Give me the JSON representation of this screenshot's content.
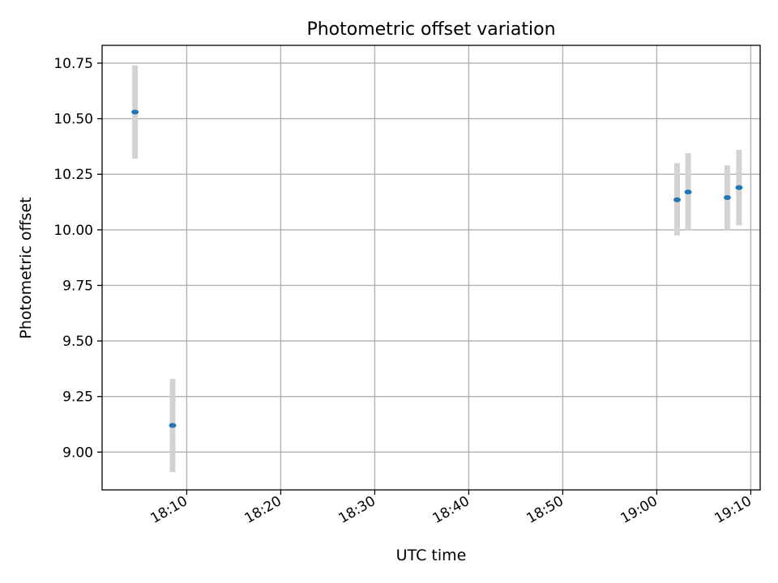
{
  "chart_data": {
    "type": "scatter",
    "title": "Photometric offset variation",
    "xlabel": "UTC time",
    "ylabel": "Photometric offset",
    "x_axis": "time",
    "xlim": [
      "18:01:00",
      "19:11:00"
    ],
    "ylim": [
      8.83,
      10.83
    ],
    "grid": true,
    "legend": "none",
    "x_ticks": [
      "18:10",
      "18:20",
      "18:30",
      "18:40",
      "18:50",
      "19:00",
      "19:10"
    ],
    "y_ticks": [
      "9.00",
      "9.25",
      "9.50",
      "9.75",
      "10.00",
      "10.25",
      "10.50",
      "10.75"
    ],
    "points": [
      {
        "x": "18:04:30",
        "y": 10.53,
        "yerr_low": 10.32,
        "yerr_high": 10.74
      },
      {
        "x": "18:08:30",
        "y": 9.12,
        "yerr_low": 8.91,
        "yerr_high": 9.33
      },
      {
        "x": "19:02:10",
        "y": 10.135,
        "yerr_low": 9.975,
        "yerr_high": 10.3
      },
      {
        "x": "19:03:20",
        "y": 10.17,
        "yerr_low": 10.0,
        "yerr_high": 10.345
      },
      {
        "x": "19:07:30",
        "y": 10.145,
        "yerr_low": 10.0,
        "yerr_high": 10.29
      },
      {
        "x": "19:08:45",
        "y": 10.19,
        "yerr_low": 10.02,
        "yerr_high": 10.36
      }
    ],
    "colors": {
      "marker": "#1f77b4",
      "errorbar": "#d3d3d3",
      "grid": "#b0b0b0",
      "frame": "#000000"
    }
  }
}
